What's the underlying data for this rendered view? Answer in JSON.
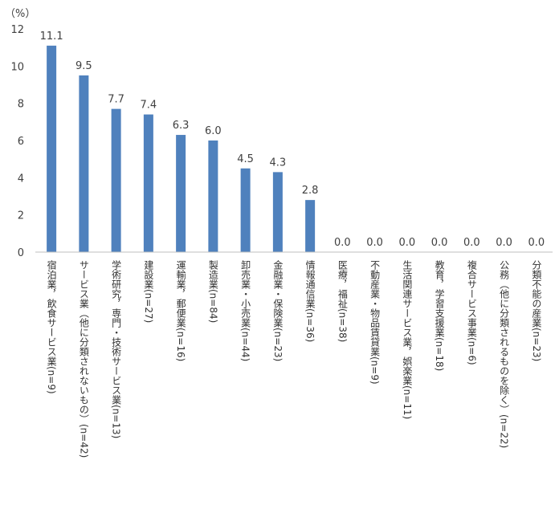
{
  "chart_data": {
    "type": "bar",
    "unit_label": "（%）",
    "categories": [
      "宿泊業，飲食サービス業(n=9)",
      "サービス業（他に分類されないもの）(n=42)",
      "学術研究，専門・技術サービス業(n=13)",
      "建設業(n=27)",
      "運輸業，郵便業(n=16)",
      "製造業(n=84)",
      "卸売業・小売業(n=44)",
      "金融業・保険業(n=23)",
      "情報通信業(n=36)",
      "医療，福祉(n=38)",
      "不動産業・物品賃貸業(n=9)",
      "生活関連サービス業，娯楽業(n=11)",
      "教育，学習支援業(n=18)",
      "複合サービス事業(n=6)",
      "公務（他に分類されるものを除く）(n=22)",
      "分類不能の産業(n=23)"
    ],
    "values": [
      11.1,
      9.5,
      7.7,
      7.4,
      6.3,
      6.0,
      4.5,
      4.3,
      2.8,
      0.0,
      0.0,
      0.0,
      0.0,
      0.0,
      0.0,
      0.0
    ],
    "value_labels": [
      "11.1",
      "9.5",
      "7.7",
      "7.4",
      "6.3",
      "6.0",
      "4.5",
      "4.3",
      "2.8",
      "0.0",
      "0.0",
      "0.0",
      "0.0",
      "0.0",
      "0.0",
      "0.0"
    ],
    "ylim": [
      0,
      12
    ],
    "yticks": [
      "0",
      "2",
      "4",
      "6",
      "8",
      "10",
      "12"
    ],
    "grid": false,
    "bar_color": "#4F81BD"
  }
}
